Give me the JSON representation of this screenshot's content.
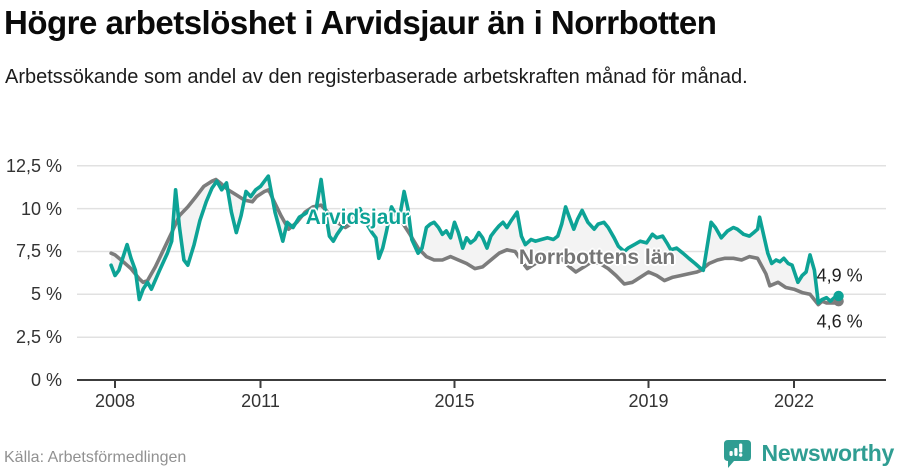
{
  "header": {
    "title": "Högre arbetslöshet i Arvidsjaur än i Norrbotten",
    "subtitle": "Arbetssökande som andel av den registerbaserade arbetskraften månad för månad."
  },
  "footer": {
    "source": "Källa: Arbetsförmedlingen",
    "brand": "Newsworthy"
  },
  "colors": {
    "arvidsjaur": "#0da396",
    "norrbotten": "#7c7c7c",
    "norrbotten_label": "#757575",
    "grid": "#e1e1e1",
    "axis": "#3c3c3c",
    "band_fill": "#f3f3f3",
    "brand_teal": "#2f9d92",
    "tick_text": "#333333",
    "end_label_text": "#1f1f1f"
  },
  "chart_data": {
    "type": "line",
    "title": "Högre arbetslöshet i Arvidsjaur än i Norrbotten",
    "subtitle": "Arbetssökande som andel av den registerbaserade arbetskraften månad för månad.",
    "unit": "%",
    "xlim": [
      2007.75,
      2023.1
    ],
    "ylim": [
      0,
      12.5
    ],
    "grid": true,
    "legend_position": "inline-labels",
    "y_ticks": [
      {
        "value": 0,
        "label": "0 %"
      },
      {
        "value": 2.5,
        "label": "2,5 %"
      },
      {
        "value": 5,
        "label": "5 %"
      },
      {
        "value": 7.5,
        "label": "7,5 %"
      },
      {
        "value": 10,
        "label": "10 %"
      },
      {
        "value": 12.5,
        "label": "12,5 %"
      }
    ],
    "x_ticks": [
      {
        "value": 2008,
        "label": "2008"
      },
      {
        "value": 2011,
        "label": "2011"
      },
      {
        "value": 2015,
        "label": "2015"
      },
      {
        "value": 2019,
        "label": "2019"
      },
      {
        "value": 2022,
        "label": "2022"
      }
    ],
    "series": [
      {
        "name": "Arvidsjaur",
        "color": "#0da396",
        "label_color": "#0da396",
        "label_anchor": [
          2013.0,
          9.45
        ],
        "end_label": "4,9 %",
        "end_value": 4.9,
        "points": [
          [
            2007.92,
            6.7
          ],
          [
            2008.0,
            6.1
          ],
          [
            2008.08,
            6.4
          ],
          [
            2008.17,
            7.2
          ],
          [
            2008.25,
            7.9
          ],
          [
            2008.33,
            7.1
          ],
          [
            2008.42,
            6.4
          ],
          [
            2008.5,
            4.7
          ],
          [
            2008.58,
            5.3
          ],
          [
            2008.67,
            5.7
          ],
          [
            2008.75,
            5.3
          ],
          [
            2008.92,
            6.4
          ],
          [
            2009.08,
            7.4
          ],
          [
            2009.17,
            8.1
          ],
          [
            2009.25,
            11.1
          ],
          [
            2009.33,
            8.9
          ],
          [
            2009.42,
            7.0
          ],
          [
            2009.5,
            6.7
          ],
          [
            2009.63,
            7.9
          ],
          [
            2009.75,
            9.3
          ],
          [
            2009.88,
            10.4
          ],
          [
            2010.0,
            11.2
          ],
          [
            2010.1,
            11.6
          ],
          [
            2010.2,
            11.1
          ],
          [
            2010.3,
            11.5
          ],
          [
            2010.4,
            9.8
          ],
          [
            2010.5,
            8.6
          ],
          [
            2010.6,
            9.6
          ],
          [
            2010.7,
            11.0
          ],
          [
            2010.8,
            10.7
          ],
          [
            2010.9,
            11.1
          ],
          [
            2011.0,
            11.3
          ],
          [
            2011.16,
            11.9
          ],
          [
            2011.3,
            9.8
          ],
          [
            2011.46,
            8.1
          ],
          [
            2011.55,
            9.2
          ],
          [
            2011.67,
            8.9
          ],
          [
            2011.8,
            9.5
          ],
          [
            2011.92,
            9.7
          ],
          [
            2012.02,
            9.9
          ],
          [
            2012.12,
            9.5
          ],
          [
            2012.25,
            11.7
          ],
          [
            2012.33,
            10.0
          ],
          [
            2012.42,
            8.4
          ],
          [
            2012.5,
            8.1
          ],
          [
            2012.58,
            8.5
          ],
          [
            2012.7,
            9.0
          ],
          [
            2012.83,
            9.4
          ],
          [
            2012.96,
            9.7
          ],
          [
            2013.05,
            10.0
          ],
          [
            2013.15,
            9.3
          ],
          [
            2013.3,
            8.6
          ],
          [
            2013.38,
            8.3
          ],
          [
            2013.44,
            7.1
          ],
          [
            2013.52,
            7.7
          ],
          [
            2013.6,
            8.7
          ],
          [
            2013.7,
            10.1
          ],
          [
            2013.8,
            9.6
          ],
          [
            2013.88,
            9.7
          ],
          [
            2013.96,
            11.0
          ],
          [
            2014.04,
            10.0
          ],
          [
            2014.12,
            8.2
          ],
          [
            2014.25,
            7.4
          ],
          [
            2014.33,
            7.7
          ],
          [
            2014.42,
            8.9
          ],
          [
            2014.5,
            9.1
          ],
          [
            2014.58,
            9.2
          ],
          [
            2014.67,
            8.9
          ],
          [
            2014.75,
            8.5
          ],
          [
            2014.83,
            8.7
          ],
          [
            2014.92,
            8.3
          ],
          [
            2015.0,
            9.2
          ],
          [
            2015.08,
            8.6
          ],
          [
            2015.17,
            7.7
          ],
          [
            2015.25,
            8.3
          ],
          [
            2015.33,
            8.0
          ],
          [
            2015.42,
            8.2
          ],
          [
            2015.5,
            8.6
          ],
          [
            2015.58,
            8.3
          ],
          [
            2015.67,
            7.7
          ],
          [
            2015.75,
            8.4
          ],
          [
            2015.83,
            8.7
          ],
          [
            2015.92,
            9.0
          ],
          [
            2016.0,
            9.2
          ],
          [
            2016.08,
            8.9
          ],
          [
            2016.17,
            9.3
          ],
          [
            2016.29,
            9.8
          ],
          [
            2016.38,
            8.4
          ],
          [
            2016.46,
            7.9
          ],
          [
            2016.58,
            8.2
          ],
          [
            2016.67,
            8.1
          ],
          [
            2016.79,
            8.2
          ],
          [
            2016.92,
            8.3
          ],
          [
            2017.04,
            8.2
          ],
          [
            2017.13,
            8.4
          ],
          [
            2017.21,
            9.1
          ],
          [
            2017.29,
            10.1
          ],
          [
            2017.38,
            9.4
          ],
          [
            2017.46,
            8.8
          ],
          [
            2017.54,
            9.4
          ],
          [
            2017.63,
            9.9
          ],
          [
            2017.75,
            9.2
          ],
          [
            2017.88,
            8.8
          ],
          [
            2017.96,
            9.1
          ],
          [
            2018.08,
            9.2
          ],
          [
            2018.17,
            8.9
          ],
          [
            2018.29,
            8.3
          ],
          [
            2018.38,
            7.8
          ],
          [
            2018.5,
            7.5
          ],
          [
            2018.58,
            7.7
          ],
          [
            2018.71,
            7.9
          ],
          [
            2018.83,
            8.1
          ],
          [
            2018.96,
            8.0
          ],
          [
            2019.08,
            8.5
          ],
          [
            2019.17,
            8.3
          ],
          [
            2019.29,
            8.4
          ],
          [
            2019.38,
            8.0
          ],
          [
            2019.46,
            7.6
          ],
          [
            2019.58,
            7.7
          ],
          [
            2019.71,
            7.4
          ],
          [
            2019.83,
            7.1
          ],
          [
            2019.96,
            6.8
          ],
          [
            2020.04,
            6.6
          ],
          [
            2020.13,
            6.4
          ],
          [
            2020.21,
            7.8
          ],
          [
            2020.29,
            9.2
          ],
          [
            2020.38,
            8.9
          ],
          [
            2020.5,
            8.3
          ],
          [
            2020.63,
            8.7
          ],
          [
            2020.75,
            8.9
          ],
          [
            2020.83,
            8.8
          ],
          [
            2020.96,
            8.5
          ],
          [
            2021.08,
            8.4
          ],
          [
            2021.17,
            8.6
          ],
          [
            2021.25,
            8.8
          ],
          [
            2021.29,
            9.5
          ],
          [
            2021.38,
            8.4
          ],
          [
            2021.46,
            7.4
          ],
          [
            2021.54,
            6.8
          ],
          [
            2021.63,
            7.0
          ],
          [
            2021.71,
            6.9
          ],
          [
            2021.79,
            7.1
          ],
          [
            2021.88,
            6.8
          ],
          [
            2021.96,
            6.7
          ],
          [
            2022.08,
            5.7
          ],
          [
            2022.17,
            6.1
          ],
          [
            2022.25,
            6.3
          ],
          [
            2022.33,
            7.3
          ],
          [
            2022.42,
            6.4
          ],
          [
            2022.5,
            4.5
          ],
          [
            2022.58,
            4.7
          ],
          [
            2022.67,
            4.8
          ],
          [
            2022.75,
            4.6
          ],
          [
            2022.83,
            4.8
          ],
          [
            2022.92,
            4.9
          ]
        ]
      },
      {
        "name": "Norrbottens län",
        "color": "#7c7c7c",
        "label_color": "#757575",
        "label_anchor": [
          2017.94,
          7.1
        ],
        "end_label": "4,6 %",
        "end_value": 4.6,
        "points": [
          [
            2007.92,
            7.4
          ],
          [
            2008.0,
            7.3
          ],
          [
            2008.17,
            6.9
          ],
          [
            2008.33,
            6.5
          ],
          [
            2008.5,
            5.9
          ],
          [
            2008.58,
            5.7
          ],
          [
            2008.67,
            5.8
          ],
          [
            2008.83,
            6.6
          ],
          [
            2009.0,
            7.6
          ],
          [
            2009.17,
            8.6
          ],
          [
            2009.33,
            9.6
          ],
          [
            2009.5,
            10.1
          ],
          [
            2009.67,
            10.7
          ],
          [
            2009.83,
            11.3
          ],
          [
            2010.0,
            11.6
          ],
          [
            2010.08,
            11.7
          ],
          [
            2010.17,
            11.5
          ],
          [
            2010.33,
            11.1
          ],
          [
            2010.5,
            10.8
          ],
          [
            2010.67,
            10.5
          ],
          [
            2010.83,
            10.4
          ],
          [
            2010.92,
            10.7
          ],
          [
            2011.08,
            11.0
          ],
          [
            2011.17,
            11.1
          ],
          [
            2011.25,
            10.6
          ],
          [
            2011.42,
            9.6
          ],
          [
            2011.58,
            8.8
          ],
          [
            2011.75,
            9.2
          ],
          [
            2011.92,
            9.8
          ],
          [
            2012.08,
            10.1
          ],
          [
            2012.25,
            10.2
          ],
          [
            2012.42,
            9.7
          ],
          [
            2012.58,
            9.2
          ],
          [
            2012.75,
            8.9
          ],
          [
            2012.92,
            9.2
          ],
          [
            2013.08,
            9.6
          ],
          [
            2013.25,
            9.5
          ],
          [
            2013.42,
            9.2
          ],
          [
            2013.58,
            9.2
          ],
          [
            2013.75,
            9.3
          ],
          [
            2013.92,
            9.2
          ],
          [
            2014.08,
            8.5
          ],
          [
            2014.25,
            7.7
          ],
          [
            2014.42,
            7.2
          ],
          [
            2014.58,
            7.0
          ],
          [
            2014.75,
            7.0
          ],
          [
            2014.92,
            7.2
          ],
          [
            2015.08,
            7.0
          ],
          [
            2015.25,
            6.8
          ],
          [
            2015.42,
            6.5
          ],
          [
            2015.58,
            6.6
          ],
          [
            2015.75,
            7.0
          ],
          [
            2015.92,
            7.4
          ],
          [
            2016.08,
            7.6
          ],
          [
            2016.25,
            7.5
          ],
          [
            2016.42,
            6.8
          ],
          [
            2016.5,
            6.5
          ],
          [
            2016.67,
            6.8
          ],
          [
            2016.83,
            7.2
          ],
          [
            2017.0,
            7.4
          ],
          [
            2017.17,
            7.2
          ],
          [
            2017.33,
            6.7
          ],
          [
            2017.5,
            6.3
          ],
          [
            2017.67,
            6.6
          ],
          [
            2017.83,
            6.9
          ],
          [
            2018.0,
            6.8
          ],
          [
            2018.17,
            6.5
          ],
          [
            2018.33,
            6.1
          ],
          [
            2018.5,
            5.6
          ],
          [
            2018.67,
            5.7
          ],
          [
            2018.83,
            6.0
          ],
          [
            2019.0,
            6.3
          ],
          [
            2019.17,
            6.1
          ],
          [
            2019.33,
            5.8
          ],
          [
            2019.5,
            6.0
          ],
          [
            2019.67,
            6.1
          ],
          [
            2019.83,
            6.2
          ],
          [
            2020.0,
            6.3
          ],
          [
            2020.08,
            6.4
          ],
          [
            2020.25,
            6.8
          ],
          [
            2020.42,
            7.0
          ],
          [
            2020.58,
            7.1
          ],
          [
            2020.75,
            7.1
          ],
          [
            2020.92,
            7.0
          ],
          [
            2021.08,
            7.2
          ],
          [
            2021.25,
            7.1
          ],
          [
            2021.42,
            6.2
          ],
          [
            2021.5,
            5.5
          ],
          [
            2021.67,
            5.7
          ],
          [
            2021.83,
            5.4
          ],
          [
            2022.0,
            5.3
          ],
          [
            2022.17,
            5.1
          ],
          [
            2022.33,
            5.0
          ],
          [
            2022.5,
            4.4
          ],
          [
            2022.58,
            4.6
          ],
          [
            2022.67,
            4.5
          ],
          [
            2022.83,
            4.5
          ],
          [
            2022.92,
            4.6
          ]
        ]
      }
    ]
  }
}
